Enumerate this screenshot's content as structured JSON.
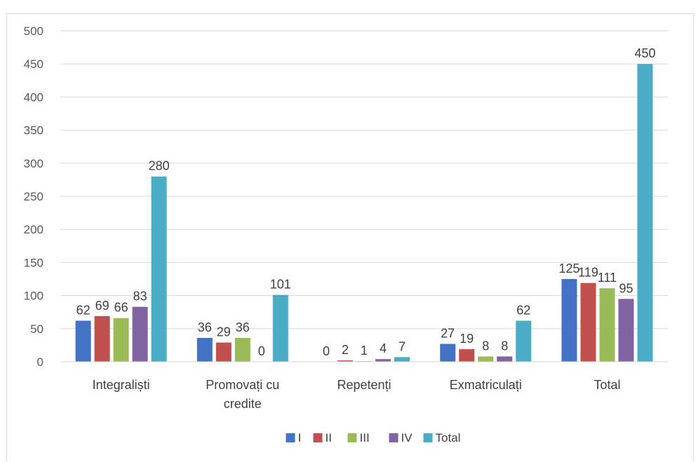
{
  "chart_data": {
    "type": "bar",
    "categories": [
      [
        "Integraliști"
      ],
      [
        "Promovați cu",
        "credite"
      ],
      [
        "Repetenți"
      ],
      [
        "Exmatriculați"
      ],
      [
        "Total"
      ]
    ],
    "series": [
      {
        "name": "I",
        "color": "#4472C4",
        "values": [
          62,
          36,
          0,
          27,
          125
        ]
      },
      {
        "name": "II",
        "color": "#C0504D",
        "values": [
          69,
          29,
          2,
          19,
          119
        ]
      },
      {
        "name": "III",
        "color": "#9BBB59",
        "values": [
          66,
          36,
          1,
          8,
          111
        ]
      },
      {
        "name": "IV",
        "color": "#8064A2",
        "values": [
          83,
          0,
          4,
          8,
          95
        ]
      },
      {
        "name": "Total",
        "color": "#4BACC6",
        "values": [
          280,
          101,
          7,
          62,
          450
        ]
      }
    ],
    "yticks": [
      "0",
      "50",
      "100",
      "150",
      "200",
      "250",
      "300",
      "350",
      "400",
      "450",
      "500"
    ],
    "ylim": [
      0,
      500
    ],
    "grid": true,
    "legend_position": "bottom"
  }
}
